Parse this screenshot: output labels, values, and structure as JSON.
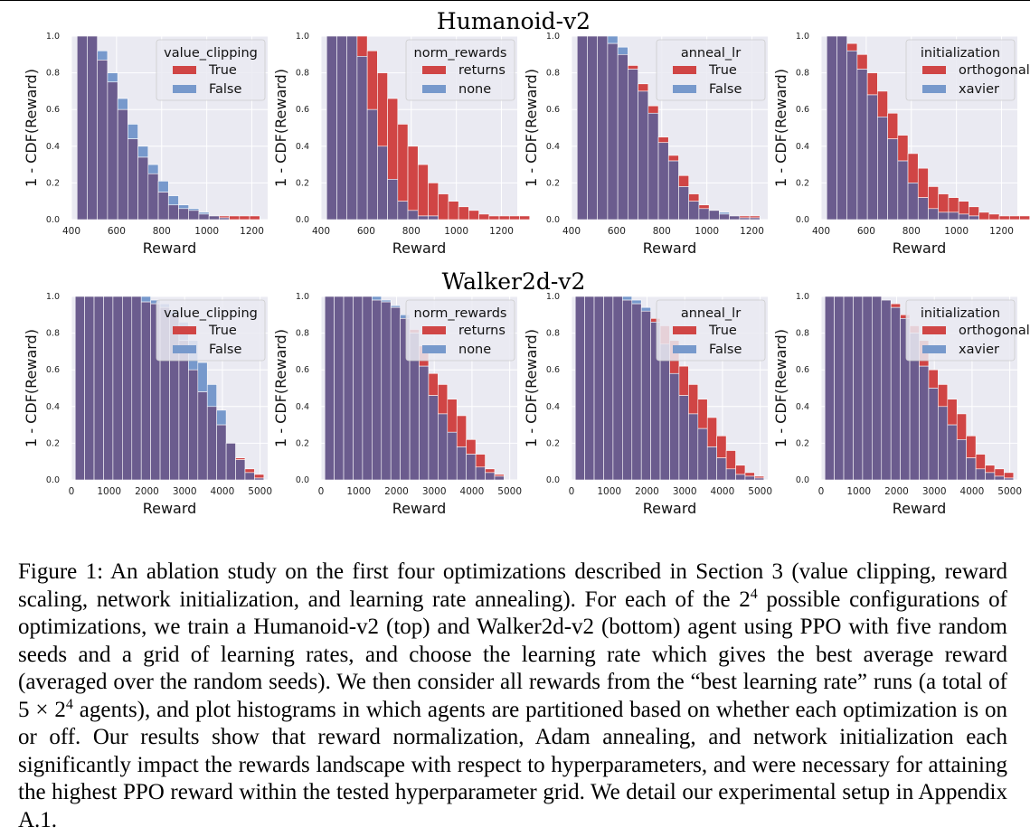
{
  "figure": {
    "row_titles": [
      "Humanoid-v2",
      "Walker2d-v2"
    ],
    "colors": {
      "on": "#d04545",
      "off": "#7799cc",
      "overlap": "#6b5c8e",
      "axes_bg": "#eaeaf2",
      "grid": "#ffffff"
    }
  },
  "caption": {
    "label": "Figure 1:",
    "part1": " An ablation study on the first four optimizations described in Section 3 (value clipping, reward scaling, network initialization, and learning rate annealing). For each of the 2",
    "sup1": "4",
    "part2": " possible configurations of optimizations, we train a Humanoid-v2 (top) and Walker2d-v2 (bottom) agent using PPO with five random seeds and a grid of learning rates, and choose the learning rate which gives the best average reward (averaged over the random seeds). We then consider all rewards from the “best learning rate” runs (a total of 5 × 2",
    "sup2": "4",
    "part3": " agents), and plot histograms in which agents are partitioned based on whether each optimization is on or off. Our results show that reward normalization, Adam annealing, and network initialization each significantly impact the rewards landscape with respect to hyperparameters, and were necessary for attaining the highest PPO reward within the tested hyperparameter grid. We detail our experimental setup in Appendix A.1."
  },
  "chart_data": [
    {
      "type": "bar",
      "histogram": "1 - CDF",
      "env": "Humanoid-v2",
      "title": "",
      "xlabel": "Reward",
      "ylabel": "1 - CDF(Reward)",
      "xlim": [
        400,
        1270
      ],
      "ylim": [
        0,
        1.0
      ],
      "xticks": [
        400,
        600,
        800,
        1000,
        1200
      ],
      "yticks": [
        0.0,
        0.2,
        0.4,
        0.6,
        0.8,
        1.0
      ],
      "bin_start": 425,
      "bin_width": 45,
      "legend": {
        "title": "value_clipping",
        "position": "upper right"
      },
      "series": [
        {
          "name": "True",
          "values": [
            1.0,
            1.0,
            0.87,
            0.75,
            0.6,
            0.44,
            0.34,
            0.25,
            0.15,
            0.08,
            0.06,
            0.05,
            0.03,
            0.02,
            0.02,
            0.02,
            0.02,
            0.02
          ]
        },
        {
          "name": "False",
          "values": [
            1.0,
            1.0,
            0.92,
            0.8,
            0.66,
            0.52,
            0.4,
            0.3,
            0.21,
            0.13,
            0.08,
            0.06,
            0.04,
            0.02,
            0.01,
            0.0,
            0.0,
            0.0
          ]
        }
      ]
    },
    {
      "type": "bar",
      "histogram": "1 - CDF",
      "env": "Humanoid-v2",
      "title": "",
      "xlabel": "Reward",
      "ylabel": "1 - CDF(Reward)",
      "xlim": [
        400,
        1270
      ],
      "ylim": [
        0,
        1.0
      ],
      "xticks": [
        400,
        600,
        800,
        1000,
        1200
      ],
      "yticks": [
        0.0,
        0.2,
        0.4,
        0.6,
        0.8,
        1.0
      ],
      "bin_start": 425,
      "bin_width": 45,
      "legend": {
        "title": "norm_rewards",
        "position": "upper right"
      },
      "series": [
        {
          "name": "returns",
          "values": [
            1.0,
            1.0,
            1.0,
            1.0,
            0.92,
            0.8,
            0.66,
            0.52,
            0.4,
            0.3,
            0.2,
            0.14,
            0.1,
            0.07,
            0.05,
            0.03,
            0.02,
            0.02,
            0.02,
            0.02
          ]
        },
        {
          "name": "none",
          "values": [
            1.0,
            1.0,
            1.0,
            0.89,
            0.6,
            0.4,
            0.22,
            0.1,
            0.05,
            0.02,
            0.02,
            0.0,
            0.0,
            0.0,
            0.0,
            0.0,
            0.0,
            0.0,
            0.0,
            0.0
          ]
        }
      ]
    },
    {
      "type": "bar",
      "histogram": "1 - CDF",
      "env": "Humanoid-v2",
      "title": "",
      "xlabel": "Reward",
      "ylabel": "1 - CDF(Reward)",
      "xlim": [
        400,
        1270
      ],
      "ylim": [
        0,
        1.0
      ],
      "xticks": [
        400,
        600,
        800,
        1000,
        1200
      ],
      "yticks": [
        0.0,
        0.2,
        0.4,
        0.6,
        0.8,
        1.0
      ],
      "bin_start": 425,
      "bin_width": 45,
      "legend": {
        "title": "anneal_lr",
        "position": "upper right"
      },
      "series": [
        {
          "name": "True",
          "values": [
            1.0,
            1.0,
            1.0,
            0.96,
            0.9,
            0.84,
            0.74,
            0.62,
            0.45,
            0.35,
            0.24,
            0.14,
            0.08,
            0.05,
            0.03,
            0.02,
            0.02,
            0.02
          ]
        },
        {
          "name": "False",
          "values": [
            1.0,
            1.0,
            1.0,
            1.0,
            0.94,
            0.82,
            0.7,
            0.58,
            0.42,
            0.32,
            0.18,
            0.1,
            0.06,
            0.05,
            0.04,
            0.02,
            0.01,
            0.01
          ]
        }
      ]
    },
    {
      "type": "bar",
      "histogram": "1 - CDF",
      "env": "Humanoid-v2",
      "title": "",
      "xlabel": "Reward",
      "ylabel": "1 - CDF(Reward)",
      "xlim": [
        400,
        1270
      ],
      "ylim": [
        0,
        1.0
      ],
      "xticks": [
        400,
        600,
        800,
        1000,
        1200
      ],
      "yticks": [
        0.0,
        0.2,
        0.4,
        0.6,
        0.8,
        1.0
      ],
      "bin_start": 425,
      "bin_width": 45,
      "legend": {
        "title": "initialization",
        "position": "upper right"
      },
      "series": [
        {
          "name": "orthogonal",
          "values": [
            1.0,
            1.0,
            0.96,
            0.9,
            0.8,
            0.7,
            0.58,
            0.46,
            0.36,
            0.28,
            0.18,
            0.14,
            0.12,
            0.1,
            0.07,
            0.04,
            0.03,
            0.02,
            0.02,
            0.02
          ]
        },
        {
          "name": "xavier",
          "values": [
            1.0,
            1.0,
            0.92,
            0.82,
            0.68,
            0.56,
            0.44,
            0.32,
            0.2,
            0.12,
            0.06,
            0.04,
            0.04,
            0.03,
            0.02,
            0.0,
            0.0,
            0.0,
            0.0,
            0.0
          ]
        }
      ]
    },
    {
      "type": "bar",
      "histogram": "1 - CDF",
      "env": "Walker2d-v2",
      "title": "",
      "xlabel": "Reward",
      "ylabel": "1 - CDF(Reward)",
      "xlim": [
        0,
        5200
      ],
      "ylim": [
        0,
        1.0
      ],
      "xticks": [
        0,
        1000,
        2000,
        3000,
        4000,
        5000
      ],
      "yticks": [
        0.0,
        0.2,
        0.4,
        0.6,
        0.8,
        1.0
      ],
      "bin_start": 100,
      "bin_width": 250,
      "legend": {
        "title": "value_clipping",
        "position": "upper right"
      },
      "series": [
        {
          "name": "True",
          "values": [
            1.0,
            1.0,
            1.0,
            1.0,
            1.0,
            1.0,
            1.0,
            0.97,
            0.96,
            0.94,
            0.9,
            0.76,
            0.6,
            0.48,
            0.4,
            0.3,
            0.2,
            0.12,
            0.06,
            0.03
          ]
        },
        {
          "name": "False",
          "values": [
            1.0,
            1.0,
            1.0,
            1.0,
            1.0,
            1.0,
            1.0,
            1.0,
            0.98,
            0.96,
            0.92,
            0.86,
            0.76,
            0.64,
            0.52,
            0.38,
            0.2,
            0.11,
            0.04,
            0.01
          ]
        }
      ]
    },
    {
      "type": "bar",
      "histogram": "1 - CDF",
      "env": "Walker2d-v2",
      "title": "",
      "xlabel": "Reward",
      "ylabel": "1 - CDF(Reward)",
      "xlim": [
        0,
        5200
      ],
      "ylim": [
        0,
        1.0
      ],
      "xticks": [
        0,
        1000,
        2000,
        3000,
        4000,
        5000
      ],
      "yticks": [
        0.0,
        0.2,
        0.4,
        0.6,
        0.8,
        1.0
      ],
      "bin_start": 100,
      "bin_width": 250,
      "legend": {
        "title": "norm_rewards",
        "position": "upper right"
      },
      "series": [
        {
          "name": "returns",
          "values": [
            1.0,
            1.0,
            1.0,
            1.0,
            1.0,
            0.98,
            0.97,
            0.94,
            0.88,
            0.82,
            0.73,
            0.58,
            0.52,
            0.44,
            0.35,
            0.22,
            0.14,
            0.06,
            0.03
          ]
        },
        {
          "name": "none",
          "values": [
            1.0,
            1.0,
            1.0,
            1.0,
            1.0,
            1.0,
            0.98,
            0.95,
            0.9,
            0.8,
            0.62,
            0.46,
            0.36,
            0.26,
            0.18,
            0.14,
            0.07,
            0.04,
            0.02
          ]
        }
      ]
    },
    {
      "type": "bar",
      "histogram": "1 - CDF",
      "env": "Walker2d-v2",
      "title": "",
      "xlabel": "Reward",
      "ylabel": "1 - CDF(Reward)",
      "xlim": [
        0,
        5200
      ],
      "ylim": [
        0,
        1.0
      ],
      "xticks": [
        0,
        1000,
        2000,
        3000,
        4000,
        5000
      ],
      "yticks": [
        0.0,
        0.2,
        0.4,
        0.6,
        0.8,
        1.0
      ],
      "bin_start": 100,
      "bin_width": 250,
      "legend": {
        "title": "anneal_lr",
        "position": "upper right"
      },
      "series": [
        {
          "name": "True",
          "values": [
            1.0,
            1.0,
            1.0,
            1.0,
            1.0,
            0.98,
            0.96,
            0.92,
            0.88,
            0.84,
            0.76,
            0.62,
            0.52,
            0.44,
            0.34,
            0.24,
            0.16,
            0.08,
            0.04,
            0.02
          ]
        },
        {
          "name": "False",
          "values": [
            1.0,
            1.0,
            1.0,
            1.0,
            1.0,
            1.0,
            0.98,
            0.94,
            0.86,
            0.74,
            0.58,
            0.46,
            0.36,
            0.28,
            0.18,
            0.12,
            0.06,
            0.03,
            0.02,
            0.01
          ]
        }
      ]
    },
    {
      "type": "bar",
      "histogram": "1 - CDF",
      "env": "Walker2d-v2",
      "title": "",
      "xlabel": "Reward",
      "ylabel": "1 - CDF(Reward)",
      "xlim": [
        0,
        5200
      ],
      "ylim": [
        0,
        1.0
      ],
      "xticks": [
        0,
        1000,
        2000,
        3000,
        4000,
        5000
      ],
      "yticks": [
        0.0,
        0.2,
        0.4,
        0.6,
        0.8,
        1.0
      ],
      "bin_start": 100,
      "bin_width": 250,
      "legend": {
        "title": "initialization",
        "position": "upper right"
      },
      "series": [
        {
          "name": "orthogonal",
          "values": [
            1.0,
            1.0,
            1.0,
            1.0,
            1.0,
            1.0,
            0.98,
            0.96,
            0.9,
            0.84,
            0.76,
            0.6,
            0.52,
            0.44,
            0.36,
            0.24,
            0.14,
            0.08,
            0.06,
            0.04
          ]
        },
        {
          "name": "xavier",
          "values": [
            1.0,
            1.0,
            1.0,
            1.0,
            1.0,
            1.0,
            0.98,
            0.94,
            0.88,
            0.8,
            0.62,
            0.5,
            0.4,
            0.3,
            0.22,
            0.12,
            0.06,
            0.04,
            0.02,
            0.01
          ]
        }
      ]
    }
  ]
}
